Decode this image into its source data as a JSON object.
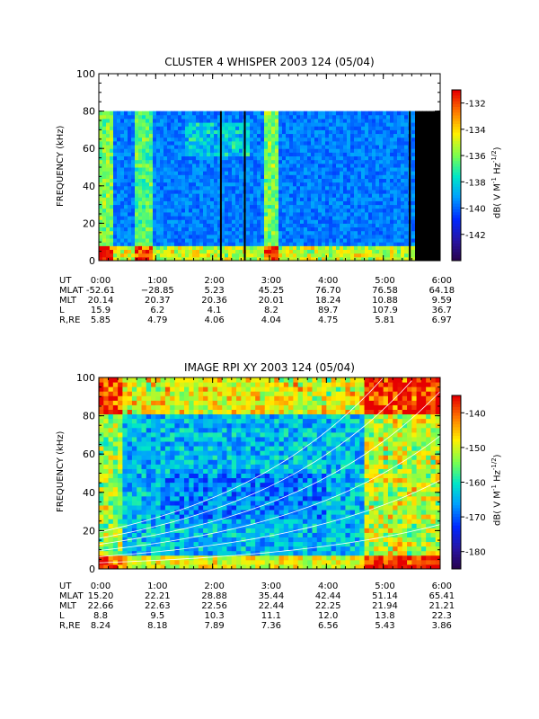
{
  "chart_data": [
    {
      "type": "heatmap",
      "title": "CLUSTER 4 WHISPER 2003 124 (05/04)",
      "ylabel": "FREQUENCY (kHz)",
      "ylim": [
        0,
        100
      ],
      "yticks": [
        "0",
        "20",
        "40",
        "60",
        "80",
        "100"
      ],
      "xticks": [
        "0:00",
        "1:00",
        "2:00",
        "3:00",
        "4:00",
        "5:00",
        "6:00"
      ],
      "xlim_hours": [
        0,
        6
      ],
      "data_top_khz": 80,
      "colorbar": {
        "label": "dB( V M⁻¹ Hz⁻¹ᐟ²)",
        "label_parts": [
          "dB( V M",
          "-1",
          " Hz",
          "-1/2",
          ")"
        ],
        "range": [
          -144,
          -131
        ],
        "ticks": [
          "-132",
          "-134",
          "-136",
          "-138",
          "-140",
          "-142"
        ]
      },
      "ephemeris": {
        "labels": [
          "UT",
          "MLAT",
          "MLT",
          "L",
          "R,RE"
        ],
        "rows": [
          [
            "0:00",
            "1:00",
            "2:00",
            "3:00",
            "4:00",
            "5:00",
            "6:00"
          ],
          [
            "-52.61",
            "−28.85",
            "5.23",
            "45.25",
            "76.70",
            "76.58",
            "64.18"
          ],
          [
            "20.14",
            "20.37",
            "20.36",
            "20.01",
            "18.24",
            "10.88",
            "9.59"
          ],
          [
            "15.9",
            "6.2",
            "4.1",
            "8.2",
            "89.7",
            "107.9",
            "36.7"
          ],
          [
            "5.85",
            "4.79",
            "4.06",
            "4.04",
            "4.75",
            "5.81",
            "6.97"
          ]
        ]
      }
    },
    {
      "type": "heatmap",
      "title": "IMAGE RPI XY 2003 124 (05/04)",
      "ylabel": "FREQUENCY (kHz)",
      "ylim": [
        0,
        100
      ],
      "yticks": [
        "0",
        "20",
        "40",
        "60",
        "80",
        "100"
      ],
      "xticks": [
        "0:00",
        "1:00",
        "2:00",
        "3:00",
        "4:00",
        "5:00",
        "6:00"
      ],
      "xlim_hours": [
        0,
        6
      ],
      "colorbar": {
        "label_parts": [
          "dB( V M",
          "-1",
          " Hz",
          "-1/2",
          ")"
        ],
        "range": [
          -185,
          -135
        ],
        "ticks": [
          "-140",
          "-150",
          "-160",
          "-170",
          "-180"
        ]
      },
      "ephemeris": {
        "labels": [
          "UT",
          "MLAT",
          "MLT",
          "L",
          "R,RE"
        ],
        "rows": [
          [
            "0:00",
            "1:00",
            "2:00",
            "3:00",
            "4:00",
            "5:00",
            "6:00"
          ],
          [
            "15.20",
            "22.21",
            "28.88",
            "35.44",
            "42.44",
            "51.14",
            "65.41"
          ],
          [
            "22.66",
            "22.63",
            "22.56",
            "22.44",
            "22.25",
            "21.94",
            "21.21"
          ],
          [
            "8.8",
            "9.5",
            "10.3",
            "11.1",
            "12.0",
            "13.8",
            "22.3"
          ],
          [
            "8.24",
            "8.18",
            "7.89",
            "7.36",
            "6.56",
            "5.43",
            "3.86"
          ]
        ]
      }
    }
  ]
}
